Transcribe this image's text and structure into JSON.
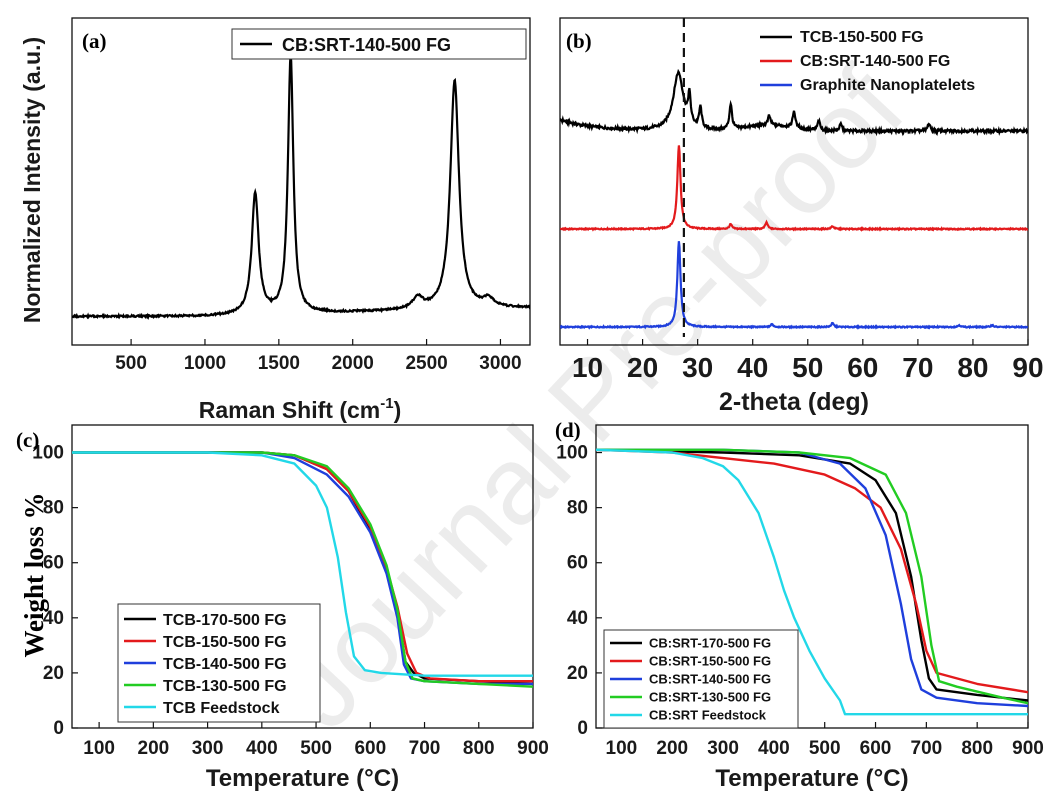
{
  "watermark": "Journal Pre-proof",
  "chart_data": [
    {
      "id": "a",
      "panel_label": "(a)",
      "type": "line",
      "xlabel": "Raman Shift (cm",
      "xlabel_sup": "-1",
      "xlabel_close": ")",
      "ylabel": "Normalized Intensity (a.u.)",
      "xlim": [
        100,
        3200
      ],
      "xticks": [
        500,
        1000,
        1500,
        2000,
        2500,
        3000
      ],
      "y_ticks_shown": false,
      "legend_position": "top-right",
      "series": [
        {
          "name": "CB:SRT-140-500 FG",
          "color": "#000000",
          "baseline": 0.03,
          "peaks": [
            {
              "x": 1340,
              "height": 0.42,
              "width": 28
            },
            {
              "x": 1580,
              "height": 0.9,
              "width": 22
            },
            {
              "x": 2440,
              "height": 0.04,
              "width": 40
            },
            {
              "x": 2690,
              "height": 0.8,
              "width": 35
            },
            {
              "x": 2920,
              "height": 0.03,
              "width": 40
            }
          ]
        }
      ]
    },
    {
      "id": "b",
      "panel_label": "(b)",
      "type": "line",
      "xlabel": "2-theta (deg)",
      "xlim": [
        5,
        90
      ],
      "xticks": [
        10,
        20,
        30,
        40,
        50,
        60,
        70,
        80,
        90
      ],
      "y_ticks_shown": false,
      "reference_line_x": 27.5,
      "legend_position": "top-right",
      "series": [
        {
          "name": "TCB-150-500 FG",
          "color": "#000000",
          "offset": 2.0,
          "main_peak": {
            "x": 26.5,
            "height": 0.62
          },
          "minor_peaks": [
            [
              28.5,
              0.3
            ],
            [
              30.5,
              0.22
            ],
            [
              36.0,
              0.27
            ],
            [
              43.0,
              0.1
            ],
            [
              47.5,
              0.18
            ],
            [
              52.0,
              0.1
            ],
            [
              56.0,
              0.07
            ],
            [
              72.0,
              0.08
            ]
          ]
        },
        {
          "name": "CB:SRT-140-500 FG",
          "color": "#e31a1c",
          "offset": 1.0,
          "main_peak": {
            "x": 26.6,
            "height": 0.9
          },
          "minor_peaks": [
            [
              36.0,
              0.05
            ],
            [
              42.5,
              0.07
            ],
            [
              54.5,
              0.03
            ]
          ]
        },
        {
          "name": "Graphite Nanoplatelets",
          "color": "#1f3fdc",
          "offset": 0.0,
          "main_peak": {
            "x": 26.6,
            "height": 0.92
          },
          "minor_peaks": [
            [
              43.5,
              0.03
            ],
            [
              54.5,
              0.04
            ],
            [
              77.5,
              0.02
            ],
            [
              83.5,
              0.02
            ]
          ]
        }
      ]
    },
    {
      "id": "c",
      "panel_label": "(c)",
      "type": "line",
      "xlabel": "Temperature (°C)",
      "ylabel": "Weight loss %",
      "xlim": [
        50,
        900
      ],
      "ylim": [
        0,
        110
      ],
      "xticks": [
        100,
        200,
        300,
        400,
        500,
        600,
        700,
        800,
        900
      ],
      "yticks": [
        0,
        20,
        40,
        60,
        80,
        100
      ],
      "legend_position": "bottom-left",
      "series": [
        {
          "name": "TCB-170-500 FG",
          "color": "#000000",
          "points": [
            [
              50,
              100
            ],
            [
              400,
              100
            ],
            [
              460,
              99
            ],
            [
              520,
              94
            ],
            [
              560,
              86
            ],
            [
              600,
              72
            ],
            [
              630,
              57
            ],
            [
              650,
              42
            ],
            [
              665,
              24
            ],
            [
              680,
              20
            ],
            [
              700,
              18
            ],
            [
              800,
              17
            ],
            [
              900,
              16
            ]
          ]
        },
        {
          "name": "TCB-150-500 FG",
          "color": "#e31a1c",
          "points": [
            [
              50,
              100
            ],
            [
              400,
              100
            ],
            [
              460,
              99
            ],
            [
              520,
              94
            ],
            [
              560,
              86
            ],
            [
              600,
              73
            ],
            [
              630,
              58
            ],
            [
              650,
              44
            ],
            [
              668,
              27
            ],
            [
              685,
              20
            ],
            [
              710,
              18
            ],
            [
              800,
              17
            ],
            [
              900,
              17
            ]
          ]
        },
        {
          "name": "TCB-140-500 FG",
          "color": "#1f3fdc",
          "points": [
            [
              50,
              100
            ],
            [
              400,
              100
            ],
            [
              460,
              98
            ],
            [
              520,
              92
            ],
            [
              560,
              84
            ],
            [
              600,
              71
            ],
            [
              630,
              56
            ],
            [
              650,
              40
            ],
            [
              662,
              23
            ],
            [
              675,
              18
            ],
            [
              700,
              17
            ],
            [
              800,
              16
            ],
            [
              900,
              16
            ]
          ]
        },
        {
          "name": "TCB-130-500 FG",
          "color": "#22cc22",
          "points": [
            [
              50,
              100
            ],
            [
              400,
              100
            ],
            [
              460,
              99
            ],
            [
              520,
              95
            ],
            [
              560,
              87
            ],
            [
              600,
              74
            ],
            [
              630,
              59
            ],
            [
              650,
              43
            ],
            [
              665,
              24
            ],
            [
              678,
              18
            ],
            [
              700,
              17
            ],
            [
              800,
              16
            ],
            [
              900,
              15
            ]
          ]
        },
        {
          "name": "TCB Feedstock",
          "color": "#22d8e8",
          "points": [
            [
              50,
              100
            ],
            [
              300,
              100
            ],
            [
              400,
              99
            ],
            [
              460,
              96
            ],
            [
              500,
              88
            ],
            [
              520,
              80
            ],
            [
              540,
              62
            ],
            [
              555,
              42
            ],
            [
              570,
              26
            ],
            [
              590,
              21
            ],
            [
              620,
              20
            ],
            [
              700,
              19
            ],
            [
              800,
              19
            ],
            [
              900,
              19
            ]
          ]
        }
      ]
    },
    {
      "id": "d",
      "panel_label": "(d)",
      "type": "line",
      "xlabel": "Temperature (°C)",
      "xlim": [
        50,
        900
      ],
      "ylim": [
        0,
        110
      ],
      "xticks": [
        100,
        200,
        300,
        400,
        500,
        600,
        700,
        800,
        900
      ],
      "yticks": [
        0,
        20,
        40,
        60,
        80,
        100
      ],
      "legend_position": "bottom-left",
      "series": [
        {
          "name": "CB:SRT-170-500 FG",
          "color": "#000000",
          "points": [
            [
              50,
              101
            ],
            [
              300,
              100
            ],
            [
              450,
              99
            ],
            [
              550,
              96
            ],
            [
              600,
              90
            ],
            [
              640,
              78
            ],
            [
              670,
              55
            ],
            [
              690,
              32
            ],
            [
              705,
              18
            ],
            [
              720,
              14
            ],
            [
              800,
              12
            ],
            [
              900,
              10
            ]
          ]
        },
        {
          "name": "CB:SRT-150-500 FG",
          "color": "#e31a1c",
          "points": [
            [
              50,
              101
            ],
            [
              200,
              100
            ],
            [
              300,
              98
            ],
            [
              400,
              96
            ],
            [
              500,
              92
            ],
            [
              560,
              87
            ],
            [
              610,
              80
            ],
            [
              650,
              65
            ],
            [
              680,
              45
            ],
            [
              700,
              28
            ],
            [
              720,
              20
            ],
            [
              800,
              16
            ],
            [
              900,
              13
            ]
          ]
        },
        {
          "name": "CB:SRT-140-500 FG",
          "color": "#1f3fdc",
          "points": [
            [
              50,
              101
            ],
            [
              300,
              101
            ],
            [
              450,
              100
            ],
            [
              530,
              96
            ],
            [
              580,
              87
            ],
            [
              620,
              70
            ],
            [
              650,
              45
            ],
            [
              670,
              25
            ],
            [
              690,
              14
            ],
            [
              720,
              11
            ],
            [
              800,
              9
            ],
            [
              900,
              8
            ]
          ]
        },
        {
          "name": "CB:SRT-130-500 FG",
          "color": "#22cc22",
          "points": [
            [
              50,
              101
            ],
            [
              300,
              101
            ],
            [
              450,
              100
            ],
            [
              550,
              98
            ],
            [
              620,
              92
            ],
            [
              660,
              78
            ],
            [
              690,
              55
            ],
            [
              710,
              30
            ],
            [
              725,
              17
            ],
            [
              760,
              15
            ],
            [
              850,
              11
            ],
            [
              900,
              9
            ]
          ]
        },
        {
          "name": "CB:SRT Feedstock",
          "color": "#22d8e8",
          "points": [
            [
              50,
              101
            ],
            [
              200,
              100
            ],
            [
              260,
              98
            ],
            [
              300,
              95
            ],
            [
              330,
              90
            ],
            [
              370,
              78
            ],
            [
              400,
              62
            ],
            [
              420,
              50
            ],
            [
              440,
              40
            ],
            [
              470,
              28
            ],
            [
              500,
              18
            ],
            [
              530,
              10
            ],
            [
              540,
              5
            ],
            [
              900,
              5
            ]
          ]
        }
      ]
    }
  ]
}
